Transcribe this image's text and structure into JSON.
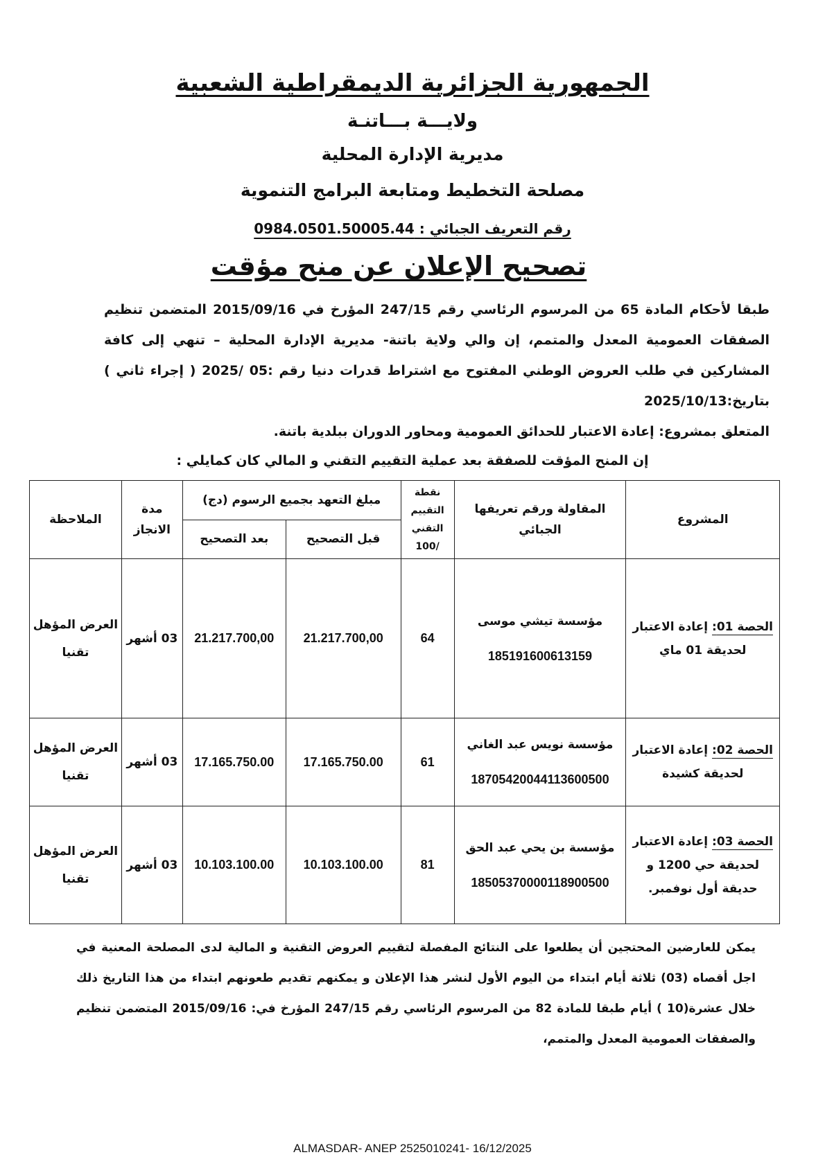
{
  "header": {
    "republic": "الجمهورية الجزائرية الديمقراطية الشعبية",
    "wilaya": "ولايـــة بـــاتنـة",
    "directorate": "مديرية الإدارة المحلية",
    "service": "مصلحة التخطيط ومتابعة البرامج التنموية",
    "tax_id": "رقم التعريف الجبائي : 0984.0501.50005.44"
  },
  "title": "تصحيح الإعلان عن منح مؤقت",
  "intro": {
    "text": "طبقا لأحكام المادة 65 من المرسوم الرئاسي رقم 247/15 المؤرخ في 2015/09/16 المتضمن تنظيم الصفقات العمومية المعدل والمتمم، إن والي ولاية باتنة- مديرية الإدارة المحلية – تنهي إلى كافة المشاركين في طلب العروض الوطني المفتوح مع اشتراط قدرات دنيا رقم :05 /2025 ( إجراء ثاني ) بتاريخ:2025/10/13",
    "project": "المتعلق بمشروع: إعادة الاعتبار للحدائق العمومية ومحاور الدوران ببلدية باتنة.",
    "lead": "إن المنح المؤقت للصفقة بعد عملية التقييم التقني و المالي كان كمايلي :"
  },
  "table": {
    "headers": {
      "project": "المشروع",
      "contractor": "المقاولة ورقم تعريفها الجبائي",
      "score": "نقطة التقييم التقني /100",
      "amount": "مبلغ التعهد بجميع الرسوم (دج)",
      "before": "قبل التصحيح",
      "after": "بعد التصحيح",
      "duration": "مدة الانجاز",
      "notes": "الملاحظة"
    },
    "rows": [
      {
        "lot": "الحصة 01:",
        "project": "إعادة الاعتبار لحديقة 01 ماي",
        "contractor": "مؤسسة تيشي موسى",
        "tax_id": "185191600613159",
        "score": "64",
        "before": "21.217.700,00",
        "after": "21.217.700,00",
        "duration": "03 أشهر",
        "notes": "العرض المؤهل تقنيا"
      },
      {
        "lot": "الحصة 02:",
        "project": "إعادة الاعتبار لحديقة كشيدة",
        "contractor": "مؤسسة نويس عبد الغاني",
        "tax_id": "18705420044113600500",
        "score": "61",
        "before": "17.165.750.00",
        "after": "17.165.750.00",
        "duration": "03 أشهر",
        "notes": "العرض المؤهل تقنيا"
      },
      {
        "lot": "الحصة 03:",
        "project": "إعادة الاعتبار لحديقة حي 1200 و حديقة أول نوفمبر.",
        "contractor": "مؤسسة بن يحي عبد الحق",
        "tax_id": "18505370000118900500",
        "score": "81",
        "before": "10.103.100.00",
        "after": "10.103.100.00",
        "duration": "03 أشهر",
        "notes": "العرض المؤهل تقنيا"
      }
    ]
  },
  "footer_text": "يمكن للعارضين المحتجين أن يطلعوا على النتائج المفصلة لتقييم العروض التقنية و المالية لدى المصلحة المعنية في اجل أقصاه (03) ثلاثة أيام ابتداء من اليوم الأول لنشر هذا الإعلان و يمكنهم تقديم طعونهم ابتداء من هذا التاريخ ذلك خلال عشرة(10 ) أيام طبقا للمادة 82 من المرسوم الرئاسي رقم 247/15 المؤرخ في: 2015/09/16 المتضمن تنظيم والصفقات العمومية المعدل والمتمم،",
  "source": "ALMASDAR- ANEP 2525010241- 16/12/2025"
}
